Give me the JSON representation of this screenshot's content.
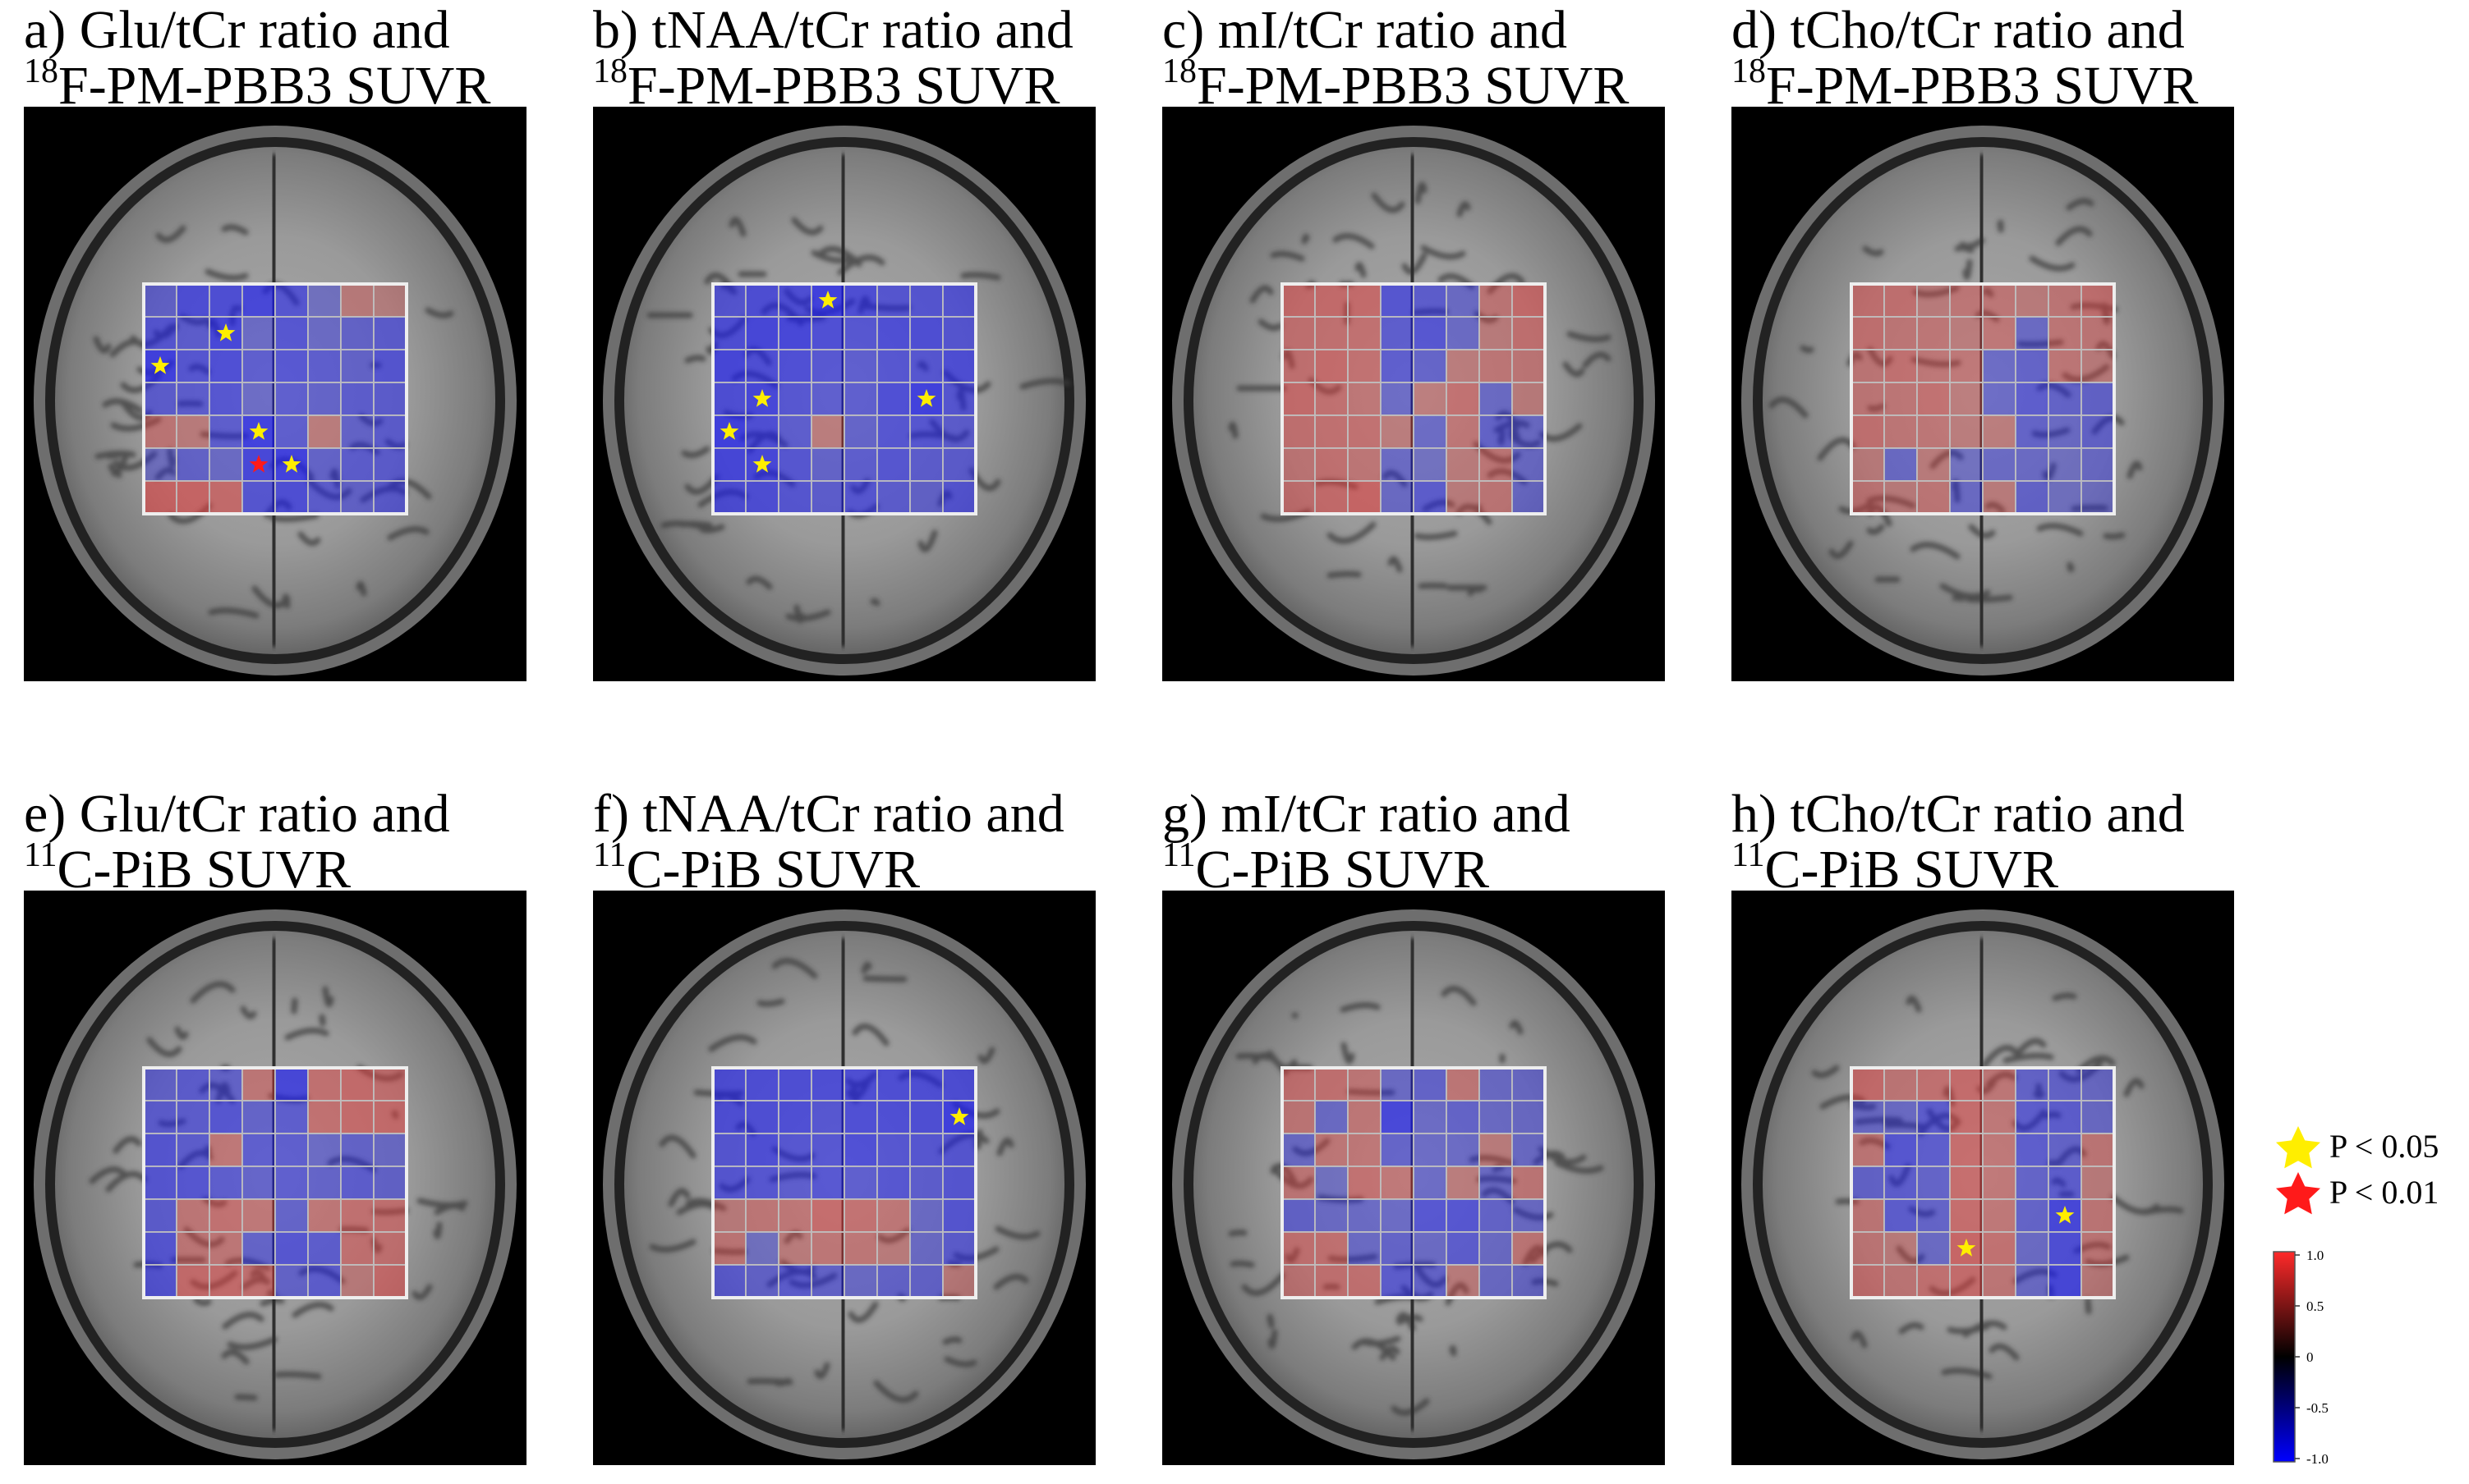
{
  "figure": {
    "panels": [
      {
        "id": "a",
        "title_line1": "a) Glu/tCr ratio and",
        "title_sup": "18",
        "title_line2": "F-PM-PBB3 SUVR",
        "grid": [
          [
            -0.4,
            -0.7,
            -0.7,
            -0.8,
            -0.6,
            -0.2,
            0.2,
            0.1
          ],
          [
            -0.6,
            -0.5,
            -0.8,
            -0.3,
            -0.6,
            -0.3,
            -0.4,
            -0.5
          ],
          [
            -0.9,
            -0.6,
            -0.7,
            -0.5,
            -0.6,
            -0.5,
            -0.4,
            -0.6
          ],
          [
            -0.5,
            -0.5,
            -0.6,
            -0.3,
            -0.5,
            -0.4,
            -0.5,
            -0.5
          ],
          [
            0.3,
            0.2,
            -0.5,
            -0.9,
            -0.5,
            0.2,
            -0.4,
            -0.5
          ],
          [
            -0.2,
            -0.4,
            -0.3,
            -0.8,
            -0.9,
            -0.4,
            -0.5,
            -0.5
          ],
          [
            0.6,
            0.6,
            0.5,
            -0.6,
            -0.7,
            -0.5,
            -0.4,
            -0.5
          ]
        ],
        "stars": [
          {
            "r": 1,
            "c": 2,
            "p": "0.05"
          },
          {
            "r": 2,
            "c": 0,
            "p": "0.05"
          },
          {
            "r": 4,
            "c": 3,
            "p": "0.05"
          },
          {
            "r": 5,
            "c": 3,
            "p": "0.01"
          },
          {
            "r": 5,
            "c": 4,
            "p": "0.05"
          }
        ]
      },
      {
        "id": "b",
        "title_line1": "b) tNAA/tCr ratio and",
        "title_sup": "18",
        "title_line2": "F-PM-PBB3 SUVR",
        "grid": [
          [
            -0.6,
            -0.7,
            -0.7,
            -0.9,
            -0.7,
            -0.6,
            -0.6,
            -0.6
          ],
          [
            -0.7,
            -0.8,
            -0.8,
            -0.7,
            -0.6,
            -0.7,
            -0.7,
            -0.6
          ],
          [
            -0.8,
            -0.7,
            -0.7,
            -0.6,
            -0.5,
            -0.6,
            -0.6,
            -0.7
          ],
          [
            -0.7,
            -0.8,
            -0.6,
            -0.5,
            -0.5,
            -0.7,
            -0.9,
            -0.6
          ],
          [
            -0.9,
            -0.7,
            -0.5,
            0.2,
            -0.4,
            -0.6,
            -0.6,
            -0.5
          ],
          [
            -0.8,
            -0.8,
            -0.6,
            -0.4,
            -0.5,
            -0.6,
            -0.5,
            -0.5
          ],
          [
            -0.7,
            -0.7,
            -0.6,
            -0.5,
            -0.6,
            -0.5,
            -0.4,
            -0.6
          ]
        ],
        "stars": [
          {
            "r": 0,
            "c": 3,
            "p": "0.05"
          },
          {
            "r": 3,
            "c": 1,
            "p": "0.05"
          },
          {
            "r": 3,
            "c": 6,
            "p": "0.05"
          },
          {
            "r": 4,
            "c": 0,
            "p": "0.05"
          },
          {
            "r": 5,
            "c": 1,
            "p": "0.05"
          }
        ]
      },
      {
        "id": "c",
        "title_line1": "c) mI/tCr ratio and",
        "title_sup": "18",
        "title_line2": "F-PM-PBB3 SUVR",
        "grid": [
          [
            0.5,
            0.5,
            0.5,
            -0.6,
            -0.5,
            -0.3,
            0.3,
            0.5
          ],
          [
            0.4,
            0.4,
            0.4,
            -0.5,
            -0.6,
            -0.3,
            0.2,
            0.4
          ],
          [
            0.4,
            0.5,
            0.4,
            -0.5,
            -0.4,
            0.2,
            0.3,
            0.3
          ],
          [
            0.5,
            0.4,
            0.3,
            -0.3,
            0.2,
            0.4,
            -0.3,
            0.2
          ],
          [
            0.4,
            0.4,
            0.4,
            0.2,
            -0.3,
            0.3,
            -0.4,
            -0.3
          ],
          [
            0.3,
            0.4,
            0.3,
            -0.3,
            -0.2,
            0.2,
            0.3,
            -0.3
          ],
          [
            0.4,
            0.5,
            0.6,
            -0.3,
            -0.5,
            0.2,
            0.3,
            -0.3
          ]
        ],
        "stars": []
      },
      {
        "id": "d",
        "title_line1": "d) tCho/tCr ratio and",
        "title_sup": "18",
        "title_line2": "F-PM-PBB3 SUVR",
        "grid": [
          [
            0.4,
            0.4,
            0.2,
            0.3,
            0.3,
            0.2,
            0.3,
            0.4
          ],
          [
            0.4,
            0.3,
            0.3,
            0.2,
            0.3,
            -0.3,
            0.3,
            0.3
          ],
          [
            0.3,
            0.4,
            0.3,
            0.3,
            -0.3,
            -0.4,
            0.3,
            0.2
          ],
          [
            0.3,
            0.3,
            0.4,
            0.2,
            -0.3,
            -0.5,
            -0.4,
            -0.4
          ],
          [
            0.4,
            0.3,
            0.3,
            0.2,
            0.2,
            -0.4,
            -0.3,
            -0.4
          ],
          [
            0.2,
            -0.3,
            0.2,
            -0.2,
            -0.3,
            -0.3,
            -0.2,
            -0.3
          ],
          [
            0.3,
            0.2,
            0.3,
            -0.3,
            0.2,
            -0.4,
            -0.2,
            -0.2
          ]
        ],
        "stars": []
      },
      {
        "id": "e",
        "title_line1": "e) Glu/tCr ratio and",
        "title_sup": "11",
        "title_line2": "C-PiB SUVR",
        "grid": [
          [
            -0.4,
            -0.5,
            -0.4,
            0.3,
            -0.8,
            0.4,
            0.5,
            0.4
          ],
          [
            -0.5,
            -0.5,
            -0.6,
            -0.4,
            -0.5,
            0.4,
            0.5,
            0.5
          ],
          [
            -0.6,
            -0.5,
            0.3,
            -0.5,
            -0.5,
            -0.3,
            -0.4,
            -0.3
          ],
          [
            -0.6,
            -0.6,
            -0.5,
            -0.4,
            -0.5,
            -0.4,
            -0.5,
            -0.4
          ],
          [
            -0.5,
            0.3,
            0.4,
            0.3,
            -0.4,
            0.3,
            0.4,
            0.4
          ],
          [
            -0.6,
            0.3,
            0.3,
            -0.4,
            -0.6,
            -0.5,
            0.4,
            0.4
          ],
          [
            -0.6,
            0.5,
            0.5,
            0.4,
            -0.4,
            -0.5,
            0.2,
            0.5
          ]
        ],
        "stars": []
      },
      {
        "id": "f",
        "title_line1": "f) tNAA/tCr ratio and",
        "title_sup": "11",
        "title_line2": "C-PiB SUVR",
        "grid": [
          [
            -0.7,
            -0.7,
            -0.7,
            -0.7,
            -0.7,
            -0.7,
            -0.7,
            -0.7
          ],
          [
            -0.7,
            -0.7,
            -0.7,
            -0.6,
            -0.7,
            -0.7,
            -0.7,
            -0.9
          ],
          [
            -0.6,
            -0.7,
            -0.6,
            -0.6,
            -0.7,
            -0.6,
            -0.6,
            -0.6
          ],
          [
            -0.6,
            -0.6,
            -0.5,
            -0.6,
            -0.5,
            -0.6,
            -0.5,
            -0.6
          ],
          [
            0.2,
            0.3,
            0.3,
            0.5,
            0.4,
            0.3,
            -0.3,
            -0.6
          ],
          [
            0.3,
            -0.2,
            0.2,
            0.3,
            0.3,
            0.2,
            -0.3,
            -0.5
          ],
          [
            -0.5,
            -0.4,
            -0.5,
            -0.4,
            -0.3,
            -0.4,
            -0.4,
            0.2
          ]
        ],
        "stars": [
          {
            "r": 1,
            "c": 7,
            "p": "0.05"
          }
        ]
      },
      {
        "id": "g",
        "title_line1": "g) mI/tCr ratio and",
        "title_sup": "11",
        "title_line2": "C-PiB SUVR",
        "grid": [
          [
            0.4,
            0.4,
            0.3,
            -0.3,
            -0.4,
            0.3,
            -0.3,
            -0.3
          ],
          [
            0.3,
            -0.3,
            0.3,
            -0.8,
            -0.3,
            -0.4,
            -0.3,
            -0.3
          ],
          [
            -0.3,
            0.3,
            0.3,
            -0.4,
            -0.3,
            -0.3,
            0.2,
            -0.3
          ],
          [
            0.3,
            -0.2,
            0.4,
            0.3,
            -0.3,
            0.2,
            -0.3,
            0.3
          ],
          [
            -0.4,
            -0.3,
            -0.3,
            -0.3,
            -0.6,
            -0.6,
            -0.4,
            -0.3
          ],
          [
            0.4,
            0.4,
            -0.3,
            -0.4,
            -0.3,
            -0.5,
            -0.3,
            0.3
          ],
          [
            0.3,
            0.4,
            0.4,
            -0.5,
            -0.4,
            0.2,
            -0.3,
            -0.3
          ]
        ],
        "stars": []
      },
      {
        "id": "h",
        "title_line1": "h) tCho/tCr ratio and",
        "title_sup": "11",
        "title_line2": "C-PiB SUVR",
        "grid": [
          [
            0.5,
            0.3,
            0.4,
            0.5,
            0.3,
            -0.4,
            -0.4,
            -0.3
          ],
          [
            -0.3,
            -0.3,
            -0.5,
            0.5,
            0.3,
            -0.5,
            -0.5,
            -0.3
          ],
          [
            0.3,
            -0.6,
            -0.5,
            0.5,
            0.3,
            -0.5,
            -0.4,
            0.3
          ],
          [
            -0.4,
            -0.5,
            -0.4,
            0.5,
            0.3,
            -0.4,
            -0.5,
            0.2
          ],
          [
            0.3,
            -0.5,
            -0.4,
            0.5,
            0.3,
            -0.4,
            -0.8,
            0.3
          ],
          [
            0.3,
            0.2,
            -0.3,
            0.6,
            0.4,
            -0.3,
            -0.7,
            0.3
          ],
          [
            0.4,
            0.3,
            0.4,
            0.5,
            0.3,
            -0.3,
            -0.8,
            0.2
          ]
        ],
        "stars": [
          {
            "r": 4,
            "c": 6,
            "p": "0.05"
          },
          {
            "r": 5,
            "c": 3,
            "p": "0.05"
          }
        ]
      }
    ],
    "legend": {
      "items": [
        {
          "label": "P < 0.05",
          "color": "#ffee00"
        },
        {
          "label": "P < 0.01",
          "color": "#ff1a1a"
        }
      ]
    },
    "colorbar": {
      "ticks": [
        "1.0",
        "0.5",
        "0",
        "-0.5",
        "-1.0"
      ],
      "range": [
        -1.0,
        1.0
      ],
      "colors": {
        "high": "#ff2a2a",
        "mid": "#000000",
        "low": "#0000ff"
      }
    }
  }
}
